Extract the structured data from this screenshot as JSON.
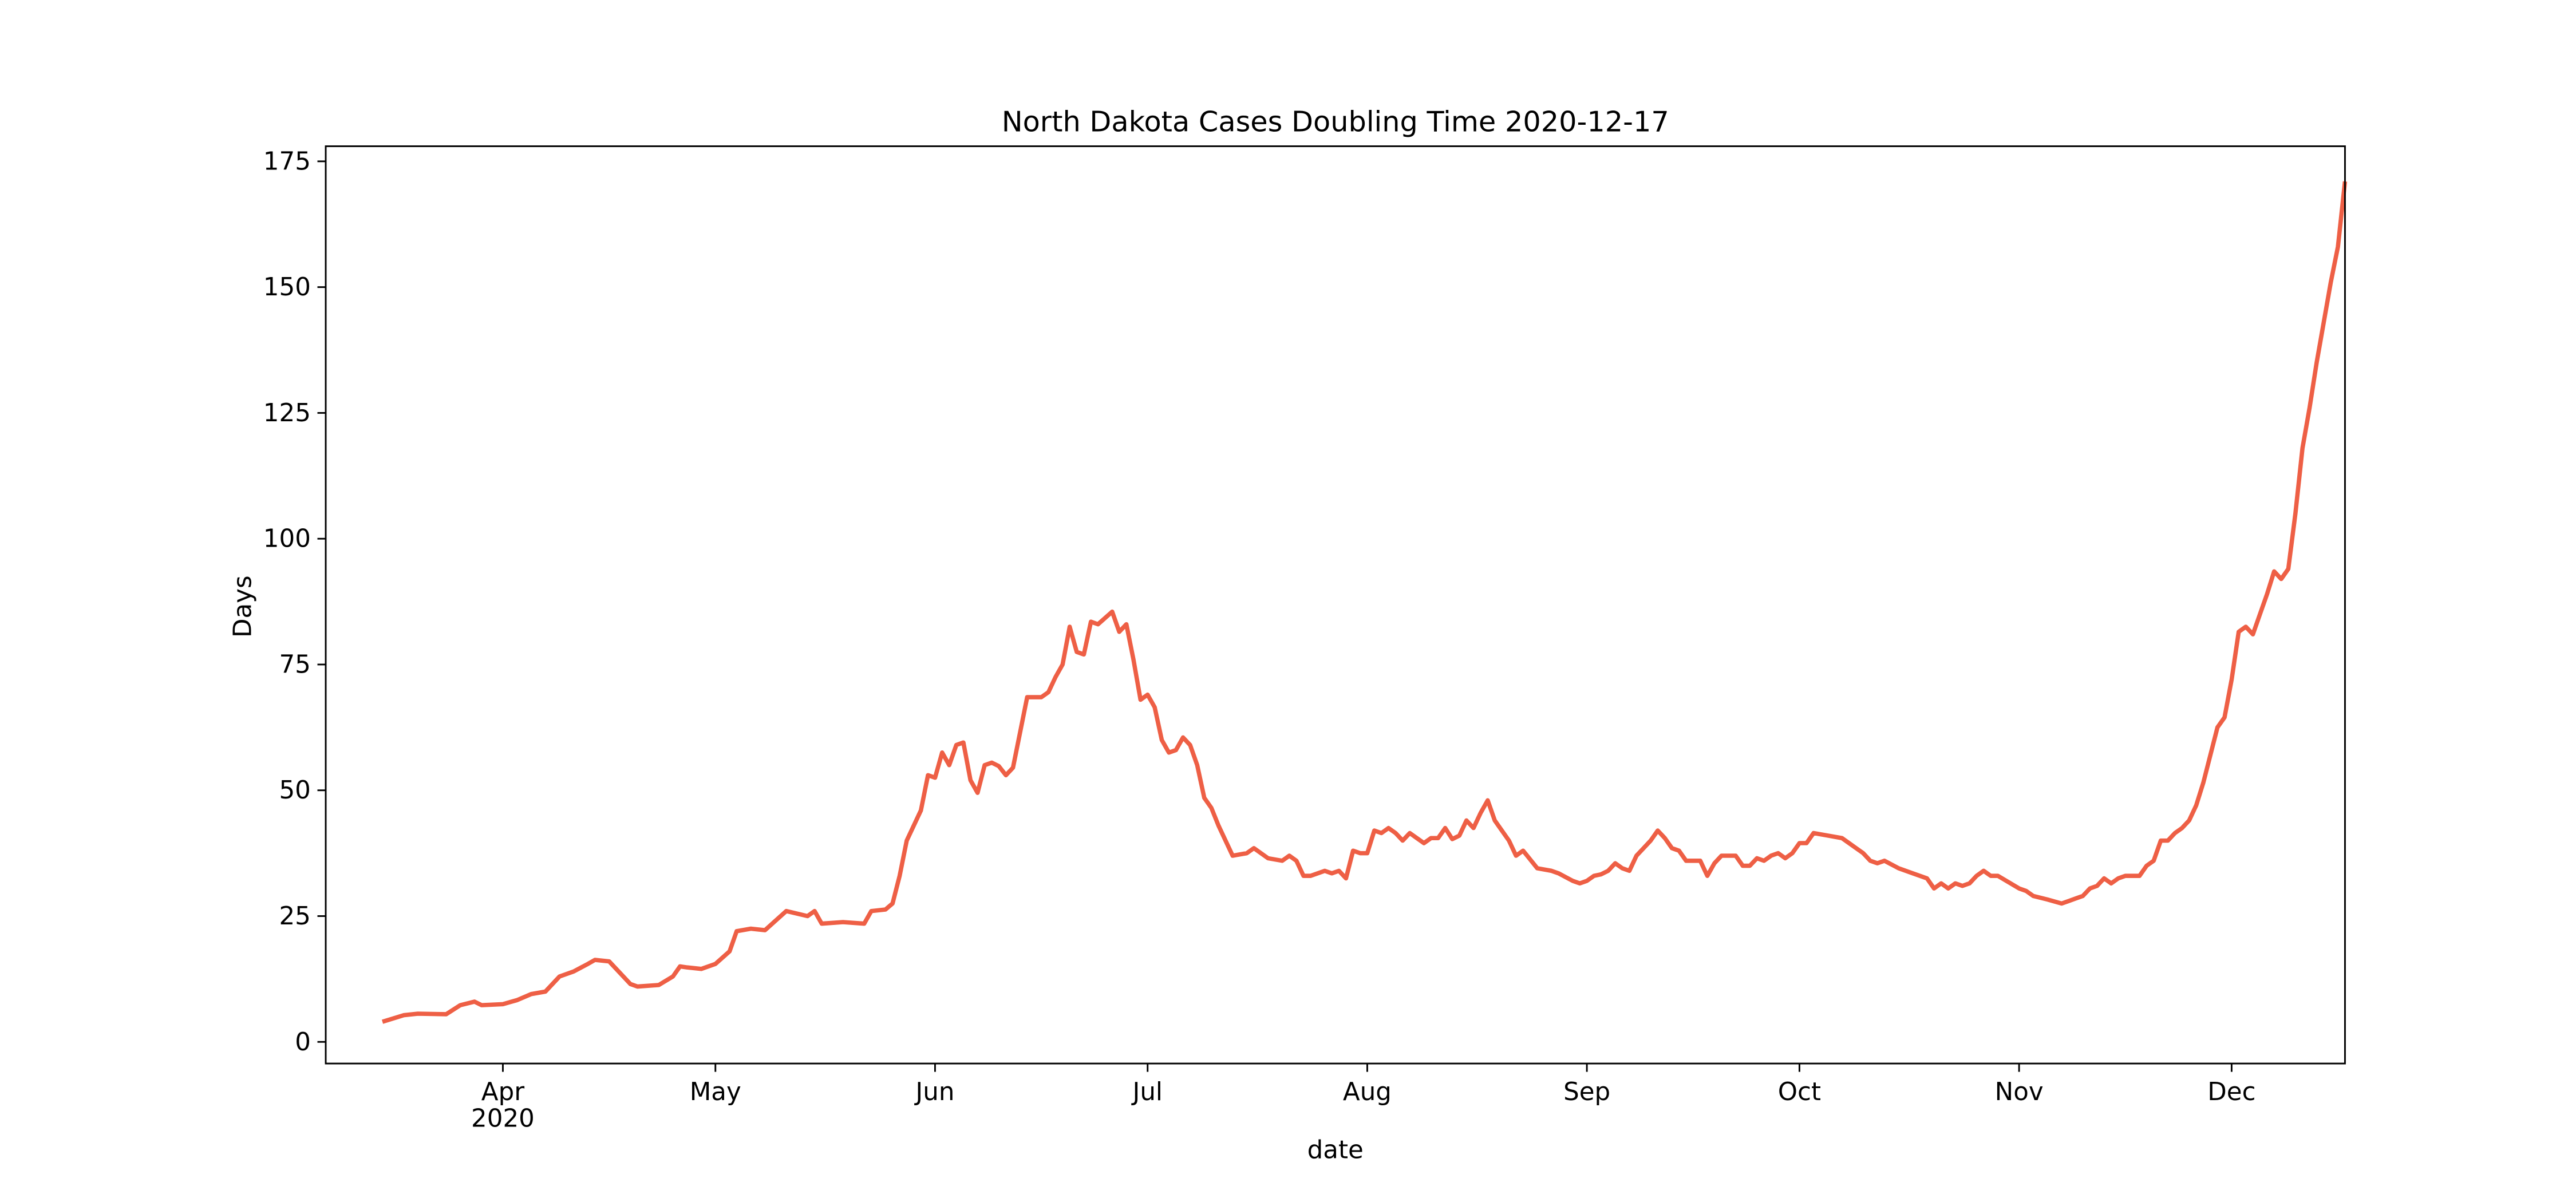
{
  "chart_data": {
    "type": "line",
    "title": "North Dakota Cases Doubling Time 2020-12-17",
    "x_label": "date",
    "y_label": "Days",
    "xlim": [
      "2020-03-07",
      "2020-12-17"
    ],
    "ylim": [
      -4.3,
      178
    ],
    "yticks": [
      0,
      25,
      50,
      75,
      100,
      125,
      150,
      175
    ],
    "xticks": [
      {
        "value": "2020-04-01",
        "label": "Apr\n2020"
      },
      {
        "value": "2020-05-01",
        "label": "May"
      },
      {
        "value": "2020-06-01",
        "label": "Jun"
      },
      {
        "value": "2020-07-01",
        "label": "Jul"
      },
      {
        "value": "2020-08-01",
        "label": "Aug"
      },
      {
        "value": "2020-09-01",
        "label": "Sep"
      },
      {
        "value": "2020-10-01",
        "label": "Oct"
      },
      {
        "value": "2020-11-01",
        "label": "Nov"
      },
      {
        "value": "2020-12-01",
        "label": "Dec"
      }
    ],
    "x": [
      "2020-03-15",
      "2020-03-18",
      "2020-03-20",
      "2020-03-24",
      "2020-03-26",
      "2020-03-28",
      "2020-03-29",
      "2020-04-01",
      "2020-04-03",
      "2020-04-05",
      "2020-04-07",
      "2020-04-09",
      "2020-04-11",
      "2020-04-13",
      "2020-04-14",
      "2020-04-16",
      "2020-04-19",
      "2020-04-20",
      "2020-04-23",
      "2020-04-25",
      "2020-04-26",
      "2020-04-27",
      "2020-04-29",
      "2020-05-01",
      "2020-05-03",
      "2020-05-04",
      "2020-05-06",
      "2020-05-08",
      "2020-05-11",
      "2020-05-14",
      "2020-05-15",
      "2020-05-16",
      "2020-05-19",
      "2020-05-22",
      "2020-05-23",
      "2020-05-25",
      "2020-05-26",
      "2020-05-27",
      "2020-05-28",
      "2020-05-30",
      "2020-05-31",
      "2020-06-01",
      "2020-06-02",
      "2020-06-03",
      "2020-06-04",
      "2020-06-05",
      "2020-06-06",
      "2020-06-07",
      "2020-06-08",
      "2020-06-09",
      "2020-06-10",
      "2020-06-11",
      "2020-06-12",
      "2020-06-14",
      "2020-06-16",
      "2020-06-17",
      "2020-06-18",
      "2020-06-19",
      "2020-06-20",
      "2020-06-21",
      "2020-06-22",
      "2020-06-23",
      "2020-06-24",
      "2020-06-26",
      "2020-06-27",
      "2020-06-28",
      "2020-06-29",
      "2020-06-30",
      "2020-07-01",
      "2020-07-02",
      "2020-07-03",
      "2020-07-04",
      "2020-07-05",
      "2020-07-06",
      "2020-07-07",
      "2020-07-08",
      "2020-07-09",
      "2020-07-10",
      "2020-07-11",
      "2020-07-13",
      "2020-07-15",
      "2020-07-16",
      "2020-07-18",
      "2020-07-20",
      "2020-07-21",
      "2020-07-22",
      "2020-07-23",
      "2020-07-24",
      "2020-07-26",
      "2020-07-27",
      "2020-07-28",
      "2020-07-29",
      "2020-07-30",
      "2020-07-31",
      "2020-08-01",
      "2020-08-02",
      "2020-08-03",
      "2020-08-04",
      "2020-08-05",
      "2020-08-06",
      "2020-08-07",
      "2020-08-08",
      "2020-08-09",
      "2020-08-10",
      "2020-08-11",
      "2020-08-12",
      "2020-08-13",
      "2020-08-14",
      "2020-08-15",
      "2020-08-16",
      "2020-08-17",
      "2020-08-18",
      "2020-08-19",
      "2020-08-20",
      "2020-08-21",
      "2020-08-22",
      "2020-08-23",
      "2020-08-25",
      "2020-08-27",
      "2020-08-28",
      "2020-08-30",
      "2020-08-31",
      "2020-09-01",
      "2020-09-02",
      "2020-09-03",
      "2020-09-04",
      "2020-09-05",
      "2020-09-06",
      "2020-09-07",
      "2020-09-08",
      "2020-09-09",
      "2020-09-10",
      "2020-09-11",
      "2020-09-12",
      "2020-09-13",
      "2020-09-14",
      "2020-09-15",
      "2020-09-17",
      "2020-09-18",
      "2020-09-19",
      "2020-09-20",
      "2020-09-22",
      "2020-09-23",
      "2020-09-24",
      "2020-09-25",
      "2020-09-26",
      "2020-09-27",
      "2020-09-28",
      "2020-09-29",
      "2020-09-30",
      "2020-10-01",
      "2020-10-02",
      "2020-10-03",
      "2020-10-05",
      "2020-10-07",
      "2020-10-08",
      "2020-10-09",
      "2020-10-10",
      "2020-10-11",
      "2020-10-12",
      "2020-10-13",
      "2020-10-15",
      "2020-10-17",
      "2020-10-18",
      "2020-10-19",
      "2020-10-20",
      "2020-10-21",
      "2020-10-22",
      "2020-10-23",
      "2020-10-24",
      "2020-10-25",
      "2020-10-26",
      "2020-10-27",
      "2020-10-28",
      "2020-10-29",
      "2020-11-01",
      "2020-11-02",
      "2020-11-03",
      "2020-11-05",
      "2020-11-07",
      "2020-11-08",
      "2020-11-09",
      "2020-11-10",
      "2020-11-11",
      "2020-11-12",
      "2020-11-13",
      "2020-11-14",
      "2020-11-15",
      "2020-11-16",
      "2020-11-18",
      "2020-11-19",
      "2020-11-20",
      "2020-11-21",
      "2020-11-22",
      "2020-11-23",
      "2020-11-24",
      "2020-11-25",
      "2020-11-26",
      "2020-11-27",
      "2020-11-28",
      "2020-11-29",
      "2020-11-30",
      "2020-12-01",
      "2020-12-02",
      "2020-12-03",
      "2020-12-04",
      "2020-12-05",
      "2020-12-06",
      "2020-12-07",
      "2020-12-08",
      "2020-12-09",
      "2020-12-10",
      "2020-12-11",
      "2020-12-12",
      "2020-12-13",
      "2020-12-14",
      "2020-12-15",
      "2020-12-16",
      "2020-12-17"
    ],
    "series": [
      {
        "color": "#ee5f45",
        "values": [
          4,
          5.3,
          5.6,
          5.5,
          7.3,
          8,
          7.3,
          7.5,
          8.3,
          9.5,
          10,
          13,
          14,
          15.5,
          16.3,
          16,
          11.5,
          11,
          11.3,
          13,
          15,
          14.8,
          14.5,
          15.5,
          18,
          22,
          22.5,
          22.2,
          26,
          25,
          26,
          23.5,
          23.8,
          23.5,
          26,
          26.3,
          27.5,
          33,
          40,
          46,
          53,
          52.5,
          57.5,
          55,
          59,
          59.5,
          52,
          49.5,
          55,
          55.5,
          54.8,
          53,
          54.5,
          68.5,
          68.5,
          69.5,
          72.5,
          75,
          82.5,
          77.5,
          77,
          83.5,
          83,
          85.5,
          81.5,
          83,
          76,
          68,
          69,
          66.5,
          60,
          57.5,
          58,
          60.5,
          59,
          55,
          48.5,
          46.5,
          43,
          37,
          37.5,
          38.5,
          36.5,
          36,
          37,
          36,
          33,
          33,
          34,
          33.5,
          34,
          32.5,
          38,
          37.5,
          37.5,
          42,
          41.5,
          42.5,
          41.5,
          40,
          41.5,
          40.5,
          39.5,
          40.5,
          40.5,
          42.5,
          40.3,
          41,
          44,
          42.5,
          45.5,
          48,
          44,
          42,
          40,
          37,
          38,
          34.5,
          34,
          33.5,
          32,
          31.5,
          32,
          33,
          33.3,
          34,
          35.5,
          34.5,
          34,
          37,
          38.5,
          40,
          42,
          40.5,
          38.5,
          38,
          36,
          36,
          33,
          35.5,
          37,
          37,
          35,
          35,
          36.5,
          36,
          37,
          37.5,
          36.5,
          37.5,
          39.5,
          39.5,
          41.5,
          41,
          40.5,
          39.5,
          38.5,
          37.5,
          36,
          35.5,
          36,
          34.5,
          33.5,
          33,
          32.5,
          30.5,
          31.5,
          30.5,
          31.5,
          31,
          31.5,
          33,
          34,
          33,
          33,
          30.5,
          30,
          29,
          28.3,
          27.5,
          28,
          28.5,
          29,
          30.5,
          31,
          32.5,
          31.5,
          32.5,
          33,
          33,
          35,
          36,
          40,
          40,
          41.5,
          42.5,
          44,
          47,
          51.5,
          57,
          62.5,
          64.5,
          72,
          81.5,
          82.5,
          81,
          85,
          89,
          93.5,
          92,
          94,
          105,
          118,
          126,
          135,
          143,
          151,
          158,
          171
        ]
      }
    ]
  }
}
